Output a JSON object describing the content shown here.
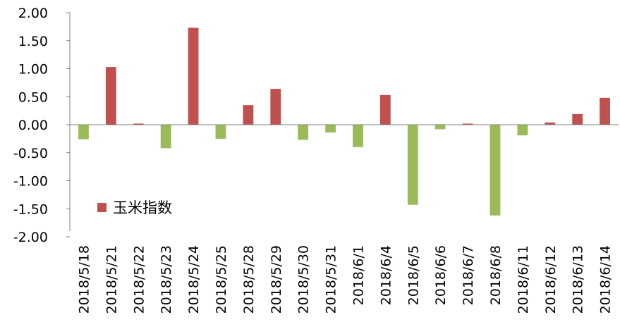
{
  "chart_data": {
    "type": "bar",
    "title": "",
    "xlabel": "",
    "ylabel": "",
    "ylim": [
      -2.0,
      2.0
    ],
    "ytick_step": 0.5,
    "grid": false,
    "legend_position": "lower-left",
    "categories": [
      "2018/5/18",
      "2018/5/21",
      "2018/5/22",
      "2018/5/23",
      "2018/5/24",
      "2018/5/25",
      "2018/5/28",
      "2018/5/29",
      "2018/5/30",
      "2018/5/31",
      "2018/6/1",
      "2018/6/4",
      "2018/6/5",
      "2018/6/6",
      "2018/6/7",
      "2018/6/8",
      "2018/6/11",
      "2018/6/12",
      "2018/6/13",
      "2018/6/14"
    ],
    "series": [
      {
        "name": "玉米指数",
        "values": [
          -0.26,
          1.03,
          0.02,
          -0.42,
          1.73,
          -0.25,
          0.35,
          0.64,
          -0.27,
          -0.14,
          -0.4,
          0.53,
          -1.43,
          -0.08,
          0.02,
          -1.62,
          -0.19,
          0.04,
          0.19,
          0.48
        ],
        "positive_color": "#c0504d",
        "negative_color": "#9bbb59"
      }
    ]
  }
}
